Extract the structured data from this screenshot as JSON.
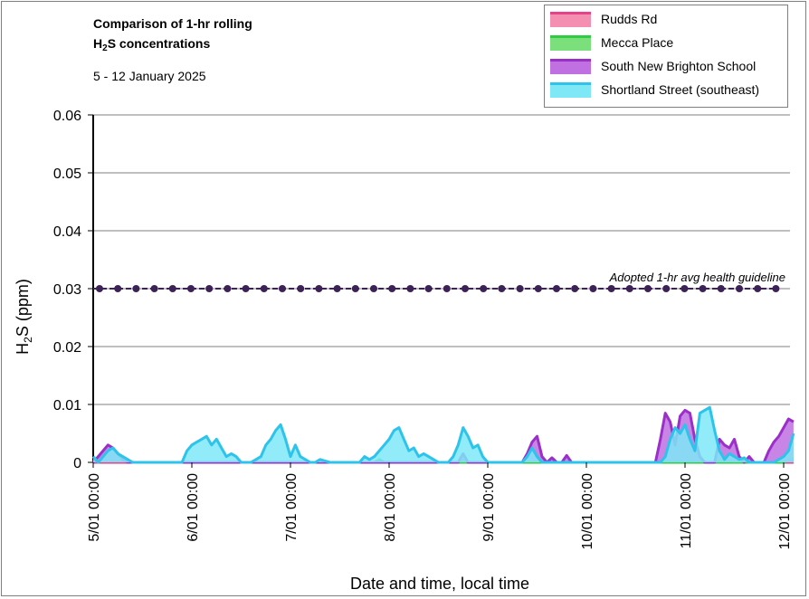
{
  "chart_data": {
    "type": "area",
    "title_line1": "Comparison of 1-hr rolling",
    "title_line2_pre": "H",
    "title_line2_sub": "2",
    "title_line2_post": "S concentrations",
    "subtitle": "5 - 12 January 2025",
    "xlabel": "Date and time, local time",
    "ylabel_pre": "H",
    "ylabel_sub": "2",
    "ylabel_post": "S (ppm)",
    "ylim": [
      0,
      0.06
    ],
    "yticks": [
      "0",
      "0.01",
      "0.02",
      "0.03",
      "0.04",
      "0.05",
      "0.06"
    ],
    "xlim": [
      0,
      7.1
    ],
    "x_tick_positions": [
      0,
      1,
      2,
      3,
      4,
      5,
      6,
      7
    ],
    "x_tick_labels": [
      "5/01 00:00",
      "6/01 00:00",
      "7/01 00:00",
      "8/01 00:00",
      "9/01 00:00",
      "10/01 00:00",
      "11/01 00:00",
      "12/01 00:00"
    ],
    "gridlines": true,
    "legend_position": "top-right",
    "guideline": {
      "value": 0.03,
      "label": "Adopted 1-hr avg health guideline",
      "color": "#3d2257"
    },
    "series": [
      {
        "name": "Rudds Rd",
        "fill": "#f48fb1",
        "stroke": "#e8418a",
        "x": [
          0,
          7.1
        ],
        "y": [
          0,
          0
        ]
      },
      {
        "name": "Mecca Place",
        "fill": "#7be07b",
        "stroke": "#2ecc40",
        "x": [
          2.85,
          2.9,
          2.95,
          7.0,
          7.05,
          7.1
        ],
        "y": [
          0,
          0.0005,
          0,
          0,
          0.0005,
          0.0005
        ]
      },
      {
        "name": "South New Brighton School",
        "fill": "#c070e0",
        "stroke": "#9b2fc8",
        "x": [
          0,
          0.05,
          0.1,
          0.15,
          0.2,
          0.25,
          0.3,
          0.35,
          3.7,
          3.75,
          3.8,
          4.35,
          4.4,
          4.45,
          4.5,
          4.55,
          4.6,
          4.65,
          4.7,
          4.75,
          4.8,
          4.85,
          4.9,
          5.0,
          5.7,
          5.75,
          5.8,
          5.85,
          5.9,
          5.95,
          6.0,
          6.05,
          6.1,
          6.15,
          6.2,
          6.3,
          6.35,
          6.4,
          6.45,
          6.5,
          6.55,
          6.6,
          6.65,
          6.7,
          6.8,
          6.85,
          6.9,
          6.95,
          7.0,
          7.05,
          7.1
        ],
        "y": [
          0,
          0.001,
          0.002,
          0.003,
          0.0025,
          0.0015,
          0.0005,
          0,
          0,
          0.0015,
          0,
          0,
          0.0015,
          0.0035,
          0.0045,
          0.001,
          0,
          0.0008,
          0,
          0,
          0.0012,
          0,
          0,
          0,
          0,
          0.004,
          0.0085,
          0.007,
          0.003,
          0.008,
          0.009,
          0.0085,
          0.004,
          0.001,
          0,
          0,
          0.004,
          0.003,
          0.0025,
          0.004,
          0.001,
          0,
          0.001,
          0,
          0,
          0.002,
          0.0035,
          0.0045,
          0.006,
          0.0075,
          0.007
        ]
      },
      {
        "name": "Shortland Street (southeast)",
        "fill": "#7ee8f7",
        "stroke": "#2dc3ea",
        "x": [
          0,
          0.05,
          0.1,
          0.15,
          0.2,
          0.25,
          0.3,
          0.35,
          0.4,
          0.9,
          0.95,
          1.0,
          1.05,
          1.1,
          1.15,
          1.2,
          1.25,
          1.3,
          1.35,
          1.4,
          1.45,
          1.5,
          1.55,
          1.6,
          1.65,
          1.7,
          1.75,
          1.8,
          1.85,
          1.9,
          1.95,
          2.0,
          2.05,
          2.1,
          2.15,
          2.2,
          2.25,
          2.3,
          2.4,
          2.7,
          2.75,
          2.8,
          2.85,
          2.9,
          2.95,
          3.0,
          3.05,
          3.1,
          3.15,
          3.2,
          3.25,
          3.3,
          3.35,
          3.4,
          3.45,
          3.5,
          3.6,
          3.65,
          3.7,
          3.75,
          3.8,
          3.85,
          3.9,
          3.95,
          4.0,
          4.05,
          4.1,
          4.15,
          4.2,
          4.25,
          4.3,
          4.35,
          4.4,
          4.45,
          4.5,
          4.55,
          4.6,
          5.75,
          5.8,
          5.85,
          5.9,
          5.95,
          6.0,
          6.05,
          6.1,
          6.15,
          6.2,
          6.25,
          6.3,
          6.35,
          6.4,
          6.45,
          6.5,
          6.55,
          6.6,
          6.65,
          6.7,
          6.75,
          6.8,
          6.85,
          6.9,
          6.95,
          7.0,
          7.05,
          7.1
        ],
        "y": [
          0.001,
          0,
          0.001,
          0.002,
          0.0025,
          0.0015,
          0.001,
          0.0005,
          0,
          0,
          0.002,
          0.003,
          0.0035,
          0.004,
          0.0045,
          0.003,
          0.004,
          0.0025,
          0.001,
          0.0015,
          0.001,
          0,
          0,
          0,
          0.0005,
          0.001,
          0.003,
          0.004,
          0.0055,
          0.0065,
          0.004,
          0.001,
          0.003,
          0.001,
          0.0005,
          0,
          0,
          0.0005,
          0,
          0,
          0.001,
          0.0005,
          0.001,
          0.002,
          0.003,
          0.004,
          0.0055,
          0.006,
          0.004,
          0.002,
          0.0025,
          0.001,
          0.0015,
          0.001,
          0.0005,
          0,
          0,
          0.001,
          0.003,
          0.006,
          0.0045,
          0.0025,
          0.003,
          0.001,
          0,
          0,
          0,
          0,
          0,
          0,
          0,
          0,
          0.001,
          0.0025,
          0.001,
          0,
          0,
          0,
          0.001,
          0.004,
          0.006,
          0.005,
          0.0065,
          0.004,
          0.002,
          0.0085,
          0.009,
          0.0095,
          0.0055,
          0.002,
          0.0005,
          0.0015,
          0.001,
          0.0005,
          0.0008,
          0,
          0,
          0,
          0,
          0,
          0,
          0.0005,
          0.001,
          0.002,
          0.005
        ]
      }
    ]
  }
}
